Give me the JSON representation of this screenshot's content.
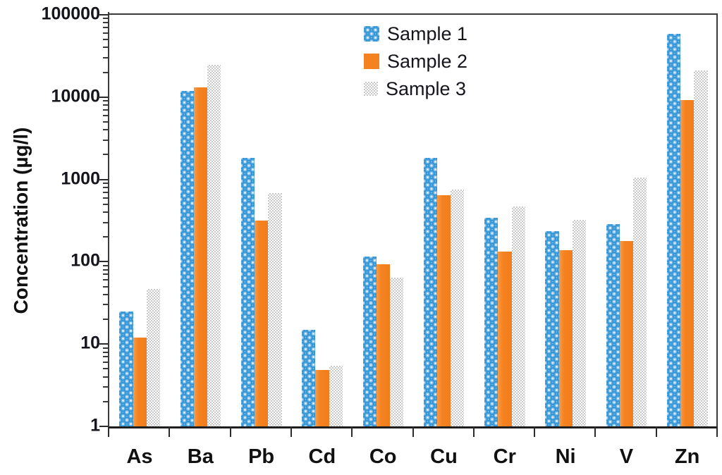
{
  "chart_data": {
    "type": "bar",
    "title": "",
    "xlabel": "",
    "ylabel": "Concentration (µg/l)",
    "y_scale": "log",
    "ylim": [
      1,
      100000
    ],
    "y_tick_labels": [
      "1",
      "10",
      "100",
      "1000",
      "10000",
      "100000"
    ],
    "grid": false,
    "legend_position": "top-center-inside",
    "categories": [
      "As",
      "Ba",
      "Pb",
      "Cd",
      "Co",
      "Cu",
      "Cr",
      "Ni",
      "V",
      "Zn"
    ],
    "series": [
      {
        "name": "Sample 1",
        "pattern": "blue-bubbles",
        "color": "#2E96D6",
        "values": [
          25,
          11900,
          1830,
          15,
          115,
          1830,
          342,
          235,
          286,
          59000
        ]
      },
      {
        "name": "Sample 2",
        "pattern": "solid-orange",
        "color": "#F58220",
        "values": [
          12,
          13100,
          316,
          4.8,
          93,
          643,
          133,
          138,
          179,
          9200
        ]
      },
      {
        "name": "Sample 3",
        "pattern": "gray-checker",
        "color": "#C9C9C9",
        "values": [
          47,
          24700,
          680,
          5.5,
          64,
          753,
          469,
          322,
          1053,
          21000
        ]
      }
    ]
  },
  "colors": {
    "axis": "#3a3a3a",
    "text": "#111111",
    "sample1_bubble": "#2E96D6",
    "sample1_base": "#A5CBEA",
    "sample2_solid": "#F58220",
    "sample3_checker": "#C9C9C9"
  }
}
